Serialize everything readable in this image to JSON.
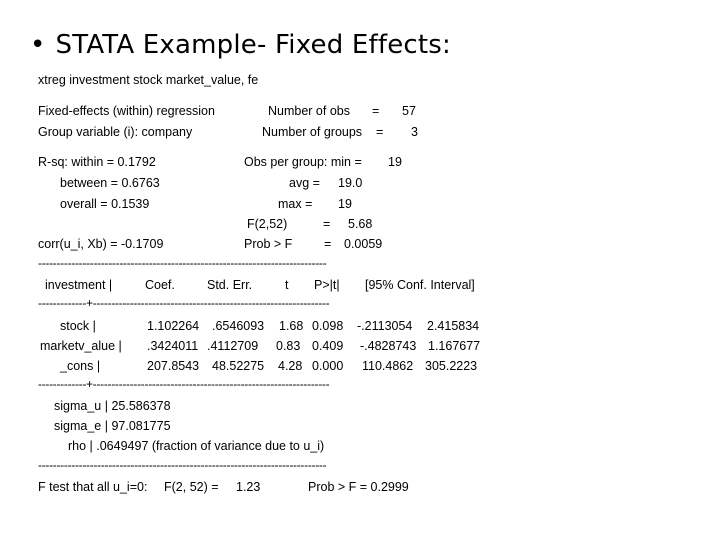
{
  "title": {
    "bullet": "•",
    "text": "STATA Example- Fixed Effects:"
  },
  "command": "xtreg investment stock market_value, fe",
  "header": {
    "model": "Fixed-effects (within) regression",
    "group_variable": "Group variable (i): company",
    "num_obs_label": "Number of obs",
    "num_obs_eq": "=",
    "num_obs_value": "57",
    "num_groups_label": "Number of groups",
    "num_groups_eq": "=",
    "num_groups_value": "3"
  },
  "fit": {
    "rsq_within": "R-sq:  within  = 0.1792",
    "rsq_between": "between = 0.6763",
    "rsq_overall": "overall = 0.1539",
    "corr": "corr(u_i, Xb)  = -0.1709",
    "obs_min_label": "Obs per group: min =",
    "obs_min_value": "19",
    "obs_avg_label": "avg =",
    "obs_avg_value": "19.0",
    "obs_max_label": "max =",
    "obs_max_value": "19",
    "f_label": "F(2,52)",
    "f_eq": "=",
    "f_value": "5.68",
    "prob_label": "Prob > F",
    "prob_eq": "=",
    "prob_value": "0.0059"
  },
  "rules": {
    "full": "------------------------------------------------------------------------------",
    "split": "-------------+----------------------------------------------------------------"
  },
  "table": {
    "headers": {
      "var": "investment |",
      "coef": "Coef.",
      "se": "Std. Err.",
      "t": "t",
      "p": "P>|t|",
      "ci": "[95% Conf. Interval]"
    },
    "rows": [
      {
        "var": "stock |",
        "coef": "1.102264",
        "se": ".6546093",
        "t": "1.68",
        "p": "0.098",
        "lo": "-.2113054",
        "hi": "2.415834"
      },
      {
        "var": "marketv_alue |",
        "coef": ".3424011",
        "se": ".4112709",
        "t": "0.83",
        "p": "0.409",
        "lo": "-.4828743",
        "hi": "1.167677"
      },
      {
        "var": "_cons |",
        "coef": "207.8543",
        "se": "48.52275",
        "t": "4.28",
        "p": "0.000",
        "lo": "110.4862",
        "hi": "305.2223"
      }
    ]
  },
  "variance": {
    "sigma_u": "sigma_u  |  25.586378",
    "sigma_e": "sigma_e  |  97.081775",
    "rho": "rho  |   .0649497   (fraction of variance due to u_i)"
  },
  "ftest": {
    "label": "F test that all u_i=0:",
    "stat": "F(2, 52) =",
    "stat_value": "1.23",
    "prob": "Prob > F = 0.2999"
  }
}
